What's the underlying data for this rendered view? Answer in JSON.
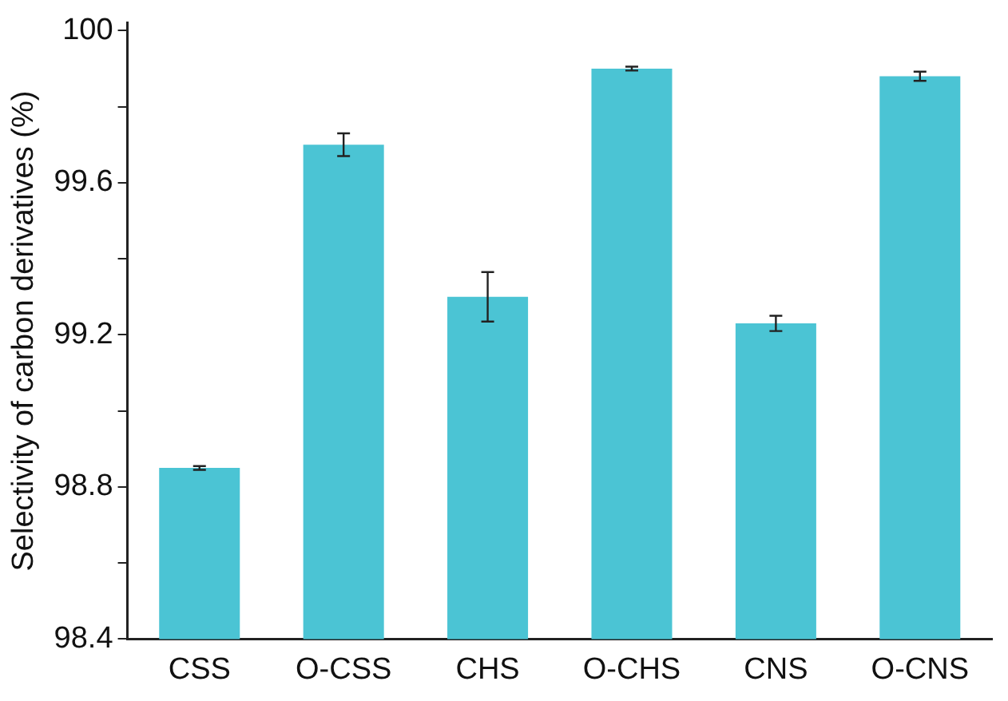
{
  "chart_data": {
    "type": "bar",
    "ylabel": "Selectivity of carbon derivatives (%)",
    "categories": [
      "CSS",
      "O-CSS",
      "CHS",
      "O-CHS",
      "CNS",
      "O-CNS"
    ],
    "values": [
      98.85,
      99.7,
      99.3,
      99.9,
      99.23,
      99.88
    ],
    "errors": [
      0.005,
      0.03,
      0.065,
      0.005,
      0.02,
      0.012
    ],
    "color": "#4bc4d4",
    "ylim": [
      98.4,
      100.02
    ],
    "yticks": [
      98.4,
      {
        "value": 98.6,
        "label": null
      },
      98.8,
      {
        "value": 99.0,
        "label": null
      },
      99.2,
      {
        "value": 99.4,
        "label": null
      },
      99.6,
      {
        "value": 99.8,
        "label": null
      },
      100
    ],
    "grid": false,
    "legend": false
  }
}
